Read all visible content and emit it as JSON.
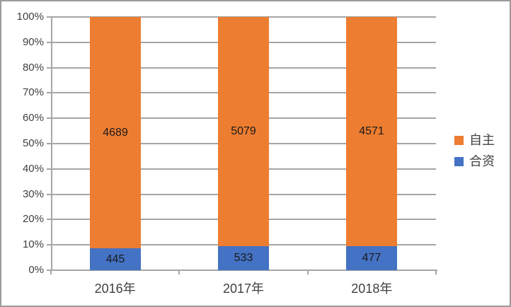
{
  "chart_data": {
    "type": "bar",
    "subtype": "stacked-100-percent-column",
    "title": "",
    "xlabel": "",
    "ylabel": "",
    "categories": [
      "2016年",
      "2017年",
      "2018年"
    ],
    "series": [
      {
        "name": "合资",
        "color": "#4472c4",
        "values": [
          445,
          533,
          477
        ]
      },
      {
        "name": "自主",
        "color": "#ed7d31",
        "values": [
          4689,
          5079,
          4571
        ]
      }
    ],
    "data_labels": true,
    "y_ticks": [
      "0%",
      "10%",
      "20%",
      "30%",
      "40%",
      "50%",
      "60%",
      "70%",
      "80%",
      "90%",
      "100%"
    ],
    "ylim": [
      0,
      100
    ],
    "grid": true,
    "gridline_color": "#a6a6a6",
    "axis_color": "#a6a6a6",
    "legend": {
      "position": "right",
      "entries": [
        {
          "label": "自主",
          "color": "#ed7d31"
        },
        {
          "label": "合资",
          "color": "#4472c4"
        }
      ]
    }
  }
}
